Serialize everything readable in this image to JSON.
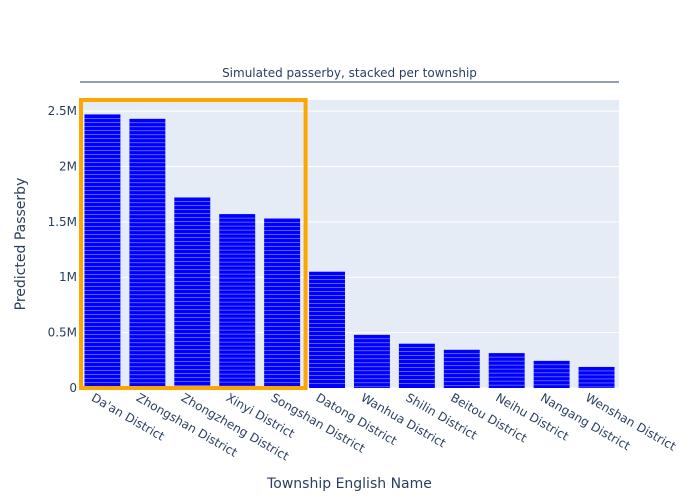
{
  "chart_data": {
    "type": "bar",
    "stacked": true,
    "title": "Simulated passerby, stacked per township",
    "xlabel": "Township English Name",
    "ylabel": "Predicted Passerby",
    "categories": [
      "Da'an District",
      "Zhongshan District",
      "Zhongzheng District",
      "Xinyi District",
      "Songshan District",
      "Datong District",
      "Wanhua District",
      "Shilin District",
      "Beitou District",
      "Neihu District",
      "Nangang District",
      "Wenshan District"
    ],
    "values": [
      2470000,
      2430000,
      1720000,
      1570000,
      1530000,
      1050000,
      480000,
      400000,
      345000,
      315000,
      245000,
      190000
    ],
    "ylim": [
      0,
      2600000
    ],
    "yticks": [
      0,
      500000,
      1000000,
      1500000,
      2000000,
      2500000
    ],
    "ytick_labels": [
      "0",
      "0.5M",
      "1M",
      "1.5M",
      "2M",
      "2.5M"
    ],
    "grid": true,
    "bar_color": "#0000ff",
    "highlight": {
      "categories": [
        "Da'an District",
        "Zhongshan District",
        "Zhongzheng District",
        "Xinyi District",
        "Songshan District"
      ],
      "color": "#ffa500"
    }
  },
  "colors": {
    "plot_background": "#e5ecf6",
    "grid": "#ffffff",
    "text": "#2a3f5f",
    "title_rule": "#2a3f5f"
  }
}
